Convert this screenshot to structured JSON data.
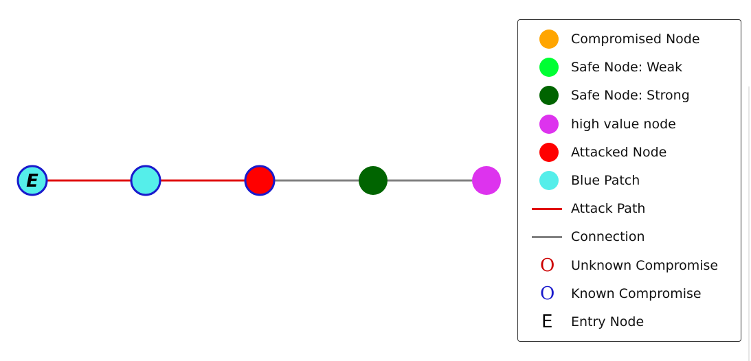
{
  "colors": {
    "compromised": "#ffa500",
    "safe_weak": "#00ff33",
    "safe_strong": "#006400",
    "high_value": "#dd33ee",
    "attacked": "#ff0000",
    "blue_patch": "#55eeea",
    "attack_path": "#e01010",
    "connection": "#808080",
    "unknown_ring": "#cc0000",
    "known_ring": "#1a1acc"
  },
  "graph": {
    "nodes": [
      {
        "id": "n1",
        "fill": "blue_patch",
        "ring": "known_ring",
        "label": "E"
      },
      {
        "id": "n2",
        "fill": "blue_patch",
        "ring": "known_ring",
        "label": ""
      },
      {
        "id": "n3",
        "fill": "attacked",
        "ring": "known_ring",
        "label": ""
      },
      {
        "id": "n4",
        "fill": "safe_strong",
        "ring": "",
        "label": ""
      },
      {
        "id": "n5",
        "fill": "high_value",
        "ring": "",
        "label": ""
      }
    ],
    "edges": [
      {
        "from": "n1",
        "to": "n2",
        "type": "attack_path"
      },
      {
        "from": "n2",
        "to": "n3",
        "type": "attack_path"
      },
      {
        "from": "n3",
        "to": "n4",
        "type": "connection"
      },
      {
        "from": "n4",
        "to": "n5",
        "type": "connection"
      }
    ]
  },
  "legend": {
    "items": [
      {
        "key": "compromised-node",
        "kind": "dot",
        "color": "compromised",
        "label": "Compromised Node"
      },
      {
        "key": "safe-node-weak",
        "kind": "dot",
        "color": "safe_weak",
        "label": "Safe Node: Weak"
      },
      {
        "key": "safe-node-strong",
        "kind": "dot",
        "color": "safe_strong",
        "label": "Safe Node: Strong"
      },
      {
        "key": "high-value-node",
        "kind": "dot",
        "color": "high_value",
        "label": "high value node"
      },
      {
        "key": "attacked-node",
        "kind": "dot",
        "color": "attacked",
        "label": "Attacked Node"
      },
      {
        "key": "blue-patch",
        "kind": "dot",
        "color": "blue_patch",
        "label": "Blue Patch"
      },
      {
        "key": "attack-path",
        "kind": "line",
        "color": "attack_path",
        "label": "Attack Path"
      },
      {
        "key": "connection",
        "kind": "line",
        "color": "connection",
        "label": "Connection"
      },
      {
        "key": "unknown-compromise",
        "kind": "ring",
        "color": "unknown_ring",
        "symbol": "O",
        "label": "Unknown Compromise"
      },
      {
        "key": "known-compromise",
        "kind": "ring",
        "color": "known_ring",
        "symbol": "O",
        "label": "Known Compromise"
      },
      {
        "key": "entry-node",
        "kind": "glyph",
        "color": "",
        "symbol": "E",
        "label": "Entry Node"
      }
    ]
  }
}
